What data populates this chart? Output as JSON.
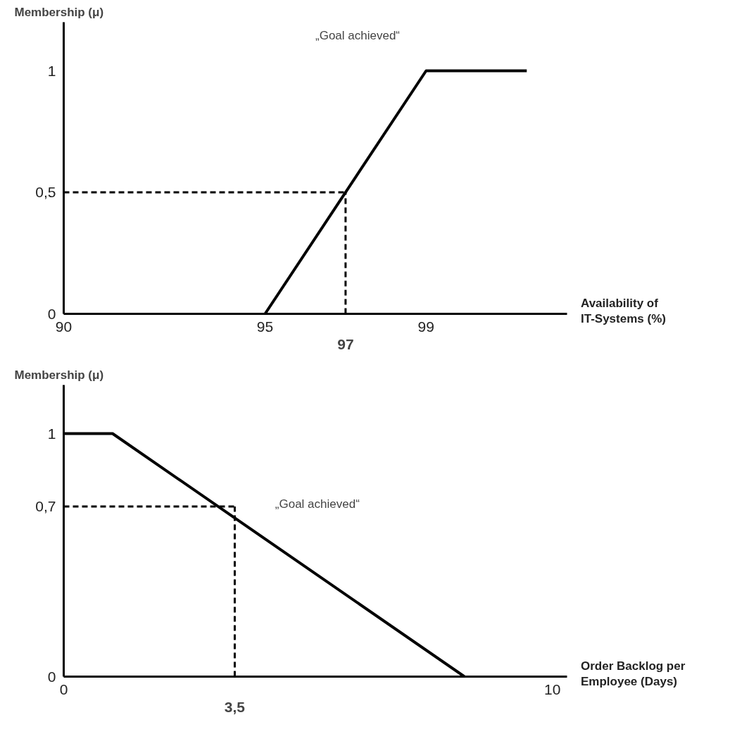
{
  "chart_data": [
    {
      "type": "line",
      "title": "Membership  (μ)",
      "xlabel": "Availability of\nIT-Systems (%)",
      "x": [
        95,
        99,
        101.5
      ],
      "series": [
        {
          "color": "#000000",
          "values": [
            0,
            1,
            1
          ]
        }
      ],
      "xlim": [
        90,
        102.5
      ],
      "ylim": [
        0,
        1.2
      ],
      "xticks": [
        90,
        95,
        99
      ],
      "yticks": [
        0,
        {
          "value": 0.5,
          "label": "0,5"
        },
        1
      ],
      "ref_lines": [
        {
          "axis": "x",
          "value": 97,
          "label": "97",
          "line_style": "dashed"
        },
        {
          "axis": "y",
          "value": 0.5,
          "line_style": "dashed"
        }
      ],
      "annotations": [
        "„Goal achieved“"
      ],
      "grid": false,
      "marker": "none",
      "line_style": "solid"
    },
    {
      "type": "line",
      "title": "Membership  (μ)",
      "xlabel": "Order Backlog per\nEmployee (Days)",
      "x": [
        0,
        1,
        8.2
      ],
      "series": [
        {
          "color": "#000000",
          "values": [
            1,
            1,
            0
          ]
        }
      ],
      "xlim": [
        0,
        10.3
      ],
      "ylim": [
        0,
        1.2
      ],
      "xticks": [
        0,
        10
      ],
      "yticks": [
        0,
        {
          "value": 0.7,
          "label": "0,7"
        },
        1
      ],
      "ref_lines": [
        {
          "axis": "x",
          "value": 3.5,
          "label": "3,5",
          "line_style": "dashed"
        },
        {
          "axis": "y",
          "value": 0.7,
          "line_style": "dashed"
        }
      ],
      "annotations": [
        "„Goal achieved“"
      ],
      "grid": false,
      "marker": "none",
      "line_style": "solid"
    }
  ]
}
